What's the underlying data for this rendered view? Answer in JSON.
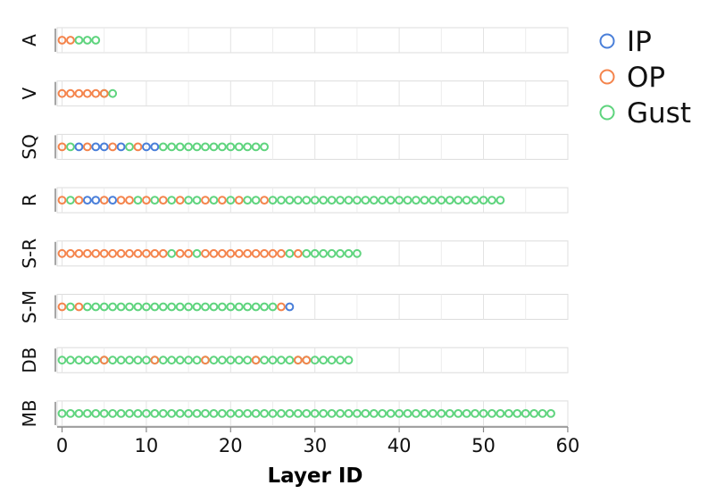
{
  "chart_data": {
    "type": "scatter",
    "xlabel": "Layer ID",
    "xlim": [
      -1,
      60.5
    ],
    "xticks": [
      0,
      10,
      20,
      30,
      40,
      50,
      60
    ],
    "grid": true,
    "legend_position": "top-right",
    "legend": [
      {
        "key": "IP",
        "label": "IP",
        "color": "#4a7fd9"
      },
      {
        "key": "OP",
        "label": "OP",
        "color": "#f4844c"
      },
      {
        "key": "Gust",
        "label": "Gust",
        "color": "#5fd47e"
      }
    ],
    "rows": [
      {
        "label": "A",
        "xmax": 4,
        "IP": [],
        "OP": [
          0,
          1
        ],
        "Gust": [
          2,
          3,
          4
        ]
      },
      {
        "label": "V",
        "xmax": 6,
        "IP": [],
        "OP": [
          0,
          1,
          2,
          3,
          4,
          5
        ],
        "Gust": [
          5,
          6
        ]
      },
      {
        "label": "SQ",
        "xmax": 24,
        "IP": [
          2,
          4,
          5,
          7,
          10,
          11
        ],
        "OP": [
          0,
          3,
          6,
          9
        ],
        "Gust": [
          1,
          8,
          12,
          13,
          14,
          15,
          16,
          17,
          18,
          19,
          20,
          21,
          22,
          23,
          24
        ]
      },
      {
        "label": "R",
        "xmax": 52,
        "IP": [
          3,
          4,
          6
        ],
        "OP": [
          0,
          2,
          5,
          7,
          8,
          10,
          12,
          14,
          17,
          19,
          21,
          24
        ],
        "Gust": [
          1,
          9,
          11,
          13,
          15,
          16,
          18,
          20,
          22,
          23,
          25,
          26,
          27,
          28,
          29,
          30,
          31,
          32,
          33,
          34,
          35,
          36,
          37,
          38,
          39,
          40,
          41,
          42,
          43,
          44,
          45,
          46,
          47,
          48,
          49,
          50,
          51,
          52
        ]
      },
      {
        "label": "S-R",
        "xmax": 35,
        "IP": [],
        "OP": [
          0,
          1,
          2,
          3,
          4,
          5,
          6,
          7,
          8,
          9,
          10,
          11,
          12,
          14,
          15,
          17,
          18,
          19,
          20,
          21,
          22,
          23,
          24,
          25,
          26,
          28
        ],
        "Gust": [
          13,
          16,
          27,
          29,
          30,
          31,
          32,
          33,
          34,
          35
        ]
      },
      {
        "label": "S-M",
        "xmax": 27,
        "IP": [
          27
        ],
        "OP": [
          0,
          2,
          26
        ],
        "Gust": [
          1,
          3,
          4,
          5,
          6,
          7,
          8,
          9,
          10,
          11,
          12,
          13,
          14,
          15,
          16,
          17,
          18,
          19,
          20,
          21,
          22,
          23,
          24,
          25
        ]
      },
      {
        "label": "DB",
        "xmax": 34,
        "IP": [],
        "OP": [
          5,
          11,
          17,
          23,
          28,
          29
        ],
        "Gust": [
          0,
          1,
          2,
          3,
          4,
          5,
          6,
          7,
          8,
          9,
          10,
          11,
          12,
          13,
          14,
          15,
          16,
          17,
          18,
          19,
          20,
          21,
          22,
          23,
          24,
          25,
          26,
          27,
          28,
          29,
          30,
          31,
          32,
          33,
          34
        ]
      },
      {
        "label": "MB",
        "xmax": 58,
        "IP": [],
        "OP": [],
        "Gust": [
          0,
          1,
          2,
          3,
          4,
          5,
          6,
          7,
          8,
          9,
          10,
          11,
          12,
          13,
          14,
          15,
          16,
          17,
          18,
          19,
          20,
          21,
          22,
          23,
          24,
          25,
          26,
          27,
          28,
          29,
          30,
          31,
          32,
          33,
          34,
          35,
          36,
          37,
          38,
          39,
          40,
          41,
          42,
          43,
          44,
          45,
          46,
          47,
          48,
          49,
          50,
          51,
          52,
          53,
          54,
          55,
          56,
          57,
          58
        ]
      }
    ]
  }
}
